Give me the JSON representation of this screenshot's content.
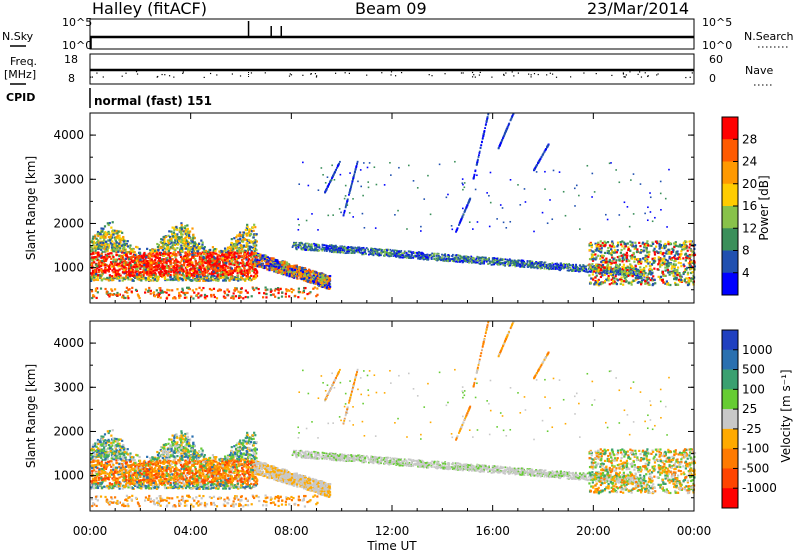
{
  "header": {
    "station": "Halley (fitACF)",
    "beam": "Beam 09",
    "date": "23/Mar/2014"
  },
  "top_panels": {
    "nsky_label": "N.Sky",
    "nsky_ticks": [
      "10^5",
      "10^0"
    ],
    "nsearch_label": "N.Search",
    "nsearch_ticks": [
      "10^5",
      "10^0"
    ],
    "freq_label": "Freq.",
    "freq_unit": "[MHz]",
    "freq_ticks": [
      "18",
      "8"
    ],
    "nave_label": "Nave",
    "nave_ticks": [
      "60",
      "0"
    ],
    "cpid_label": "CPID",
    "cpid_value": "normal (fast) 151"
  },
  "chart_data": [
    {
      "type": "heatmap",
      "ylabel": "Slant Range [km]",
      "ylim": [
        200,
        4500
      ],
      "xlim_hours": [
        0,
        24
      ],
      "yticks": [
        "1000",
        "2000",
        "3000",
        "4000"
      ],
      "colorbar": {
        "label": "Power [dB]",
        "ticks": [
          "28",
          "24",
          "20",
          "16",
          "12",
          "8",
          "4"
        ],
        "colors": [
          "#ff0000",
          "#ff5a00",
          "#ff9900",
          "#ffcc00",
          "#88c24a",
          "#3a8f5a",
          "#2050b0",
          "#0000ff"
        ]
      }
    },
    {
      "type": "heatmap",
      "ylabel": "Slant Range [km]",
      "ylim": [
        200,
        4500
      ],
      "xlim_hours": [
        0,
        24
      ],
      "yticks": [
        "1000",
        "2000",
        "3000",
        "4000"
      ],
      "colorbar": {
        "label": "Velocity [m s⁻¹]",
        "ticks": [
          "1000",
          "500",
          "100",
          "25",
          "-25",
          "-100",
          "-500",
          "-1000"
        ],
        "colors": [
          "#2040c0",
          "#2a70b0",
          "#3aa070",
          "#66cc33",
          "#c8c8c8",
          "#ffaa00",
          "#ff7a00",
          "#ff4400",
          "#ff0000"
        ]
      }
    }
  ],
  "xaxis": {
    "label": "Time UT",
    "ticks": [
      "00:00",
      "04:00",
      "08:00",
      "12:00",
      "16:00",
      "20:00",
      "00:00"
    ]
  }
}
